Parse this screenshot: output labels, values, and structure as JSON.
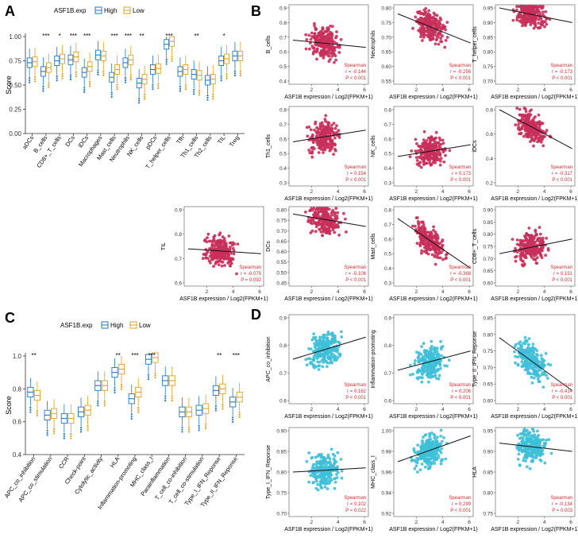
{
  "colors": {
    "high": "#1f77c4",
    "low": "#e0a020",
    "pointB": "#c8305a",
    "pointD": "#3fbfd8",
    "line": "#111111",
    "stat": "#d03030"
  },
  "chart_data": [
    {
      "panel": "A",
      "type": "box",
      "legend_title": "ASF1B.exp",
      "legend_items": [
        "High",
        "Low"
      ],
      "ylabel": "Score",
      "ylim": [
        0,
        1
      ],
      "yticks": [
        "0.00",
        "0.25",
        "0.50",
        "0.75",
        "1.00"
      ],
      "categories": [
        "aDCs",
        "B_cells",
        "CD8+_T_cells",
        "DCs",
        "iDCs",
        "Macrophages",
        "Mast_cells",
        "Neutrophils",
        "NK_cells",
        "pDCs",
        "T_helper_cells",
        "Tfh",
        "Th1_cells",
        "Th2_cells",
        "TIL",
        "Treg"
      ],
      "significance": [
        "",
        "***",
        "*",
        "***",
        "***",
        "",
        "***",
        "***",
        "**",
        "",
        "***",
        "",
        "**",
        "",
        "*",
        ""
      ],
      "medians_high": [
        0.73,
        0.64,
        0.75,
        0.76,
        0.63,
        0.81,
        0.58,
        0.73,
        0.52,
        0.66,
        0.92,
        0.64,
        0.61,
        0.55,
        0.75,
        0.8
      ],
      "medians_low": [
        0.74,
        0.68,
        0.77,
        0.79,
        0.69,
        0.8,
        0.66,
        0.76,
        0.56,
        0.67,
        0.95,
        0.66,
        0.6,
        0.56,
        0.77,
        0.8
      ]
    },
    {
      "panel": "B",
      "type": "scatter",
      "xlabel": "ASF1B expression / Log2(FPKM+1)",
      "legend": "Spearman",
      "plots": [
        {
          "ylabel": "B_cells",
          "r": "r = -0.144",
          "p": "P < 0.001",
          "yticks": [
            "0.4",
            "0.5",
            "0.6",
            "0.7",
            "0.8",
            "0.9"
          ],
          "xticks": [
            "2",
            "4",
            "6"
          ],
          "fit": [
            0.68,
            0.63
          ]
        },
        {
          "ylabel": "Neutrophils",
          "r": "r = -0.256",
          "p": "P < 0.001",
          "yticks": [
            "0.55",
            "0.60",
            "0.65",
            "0.70",
            "0.75",
            "0.80"
          ],
          "xticks": [
            "2",
            "4",
            "6"
          ],
          "fit": [
            0.78,
            0.68
          ]
        },
        {
          "ylabel": "T_helper_cells",
          "r": "r = -0.173",
          "p": "P < 0.001",
          "yticks": [
            "0.70",
            "0.75",
            "0.80",
            "0.85",
            "0.90",
            "0.95"
          ],
          "xticks": [
            "2",
            "4",
            "6"
          ],
          "fit": [
            0.95,
            0.9
          ]
        },
        {
          "ylabel": "Th1_cells",
          "r": "r = 0.154",
          "p": "P < 0.001",
          "yticks": [
            "0.3",
            "0.4",
            "0.5",
            "0.6",
            "0.7",
            "0.8"
          ],
          "xticks": [
            "2",
            "4",
            "6"
          ],
          "fit": [
            0.58,
            0.66
          ]
        },
        {
          "ylabel": "NK_cells",
          "r": "r = 0.173",
          "p": "P < 0.001",
          "yticks": [
            "0.3",
            "0.4",
            "0.5",
            "0.6",
            "0.7",
            "0.8"
          ],
          "xticks": [
            "2",
            "4",
            "6"
          ],
          "fit": [
            0.48,
            0.56
          ]
        },
        {
          "ylabel": "iDCs",
          "r": "r = -0.317",
          "p": "P < 0.001",
          "yticks": [
            "0.2",
            "0.4",
            "0.6",
            "0.8"
          ],
          "xticks": [
            "2",
            "4",
            "6"
          ],
          "fit": [
            0.8,
            0.48
          ]
        },
        {
          "ylabel": "TIL",
          "r": "r = -0.075",
          "p": "P = 0.092",
          "yticks": [
            "0.6",
            "0.7",
            "0.8",
            "0.9"
          ],
          "xticks": [
            "2",
            "4",
            "6"
          ],
          "fit": [
            0.74,
            0.72
          ]
        },
        {
          "ylabel": "DCs",
          "r": "r = -0.106",
          "p": "P < 0.001",
          "yticks": [
            "0.45",
            "0.50",
            "0.55",
            "0.60",
            "0.65",
            "0.70",
            "0.75",
            "0.80"
          ],
          "xticks": [
            "2",
            "4",
            "6"
          ],
          "fit": [
            0.78,
            0.72
          ]
        },
        {
          "ylabel": "Mast_cells",
          "r": "r = -0.368",
          "p": "P < 0.001",
          "yticks": [
            "0.3",
            "0.4",
            "0.5",
            "0.6",
            "0.7",
            "0.8"
          ],
          "xticks": [
            "2",
            "4",
            "6"
          ],
          "fit": [
            0.74,
            0.4
          ]
        },
        {
          "ylabel": "CD8+_T_cells",
          "r": "r = 0.151",
          "p": "P < 0.001",
          "yticks": [
            "0.60",
            "0.65",
            "0.70",
            "0.75",
            "0.80",
            "0.85",
            "0.90"
          ],
          "xticks": [
            "2",
            "4",
            "6"
          ],
          "fit": [
            0.72,
            0.78
          ]
        }
      ]
    },
    {
      "panel": "C",
      "type": "box",
      "legend_title": "ASF1B.exp",
      "legend_items": [
        "High",
        "Low"
      ],
      "ylabel": "Score",
      "ylim": [
        0.4,
        1.0
      ],
      "yticks": [
        "0.4",
        "0.6",
        "0.8",
        "1.0"
      ],
      "categories": [
        "APC_co_inhibition",
        "APC_co_stimulation",
        "CCR",
        "Check-point",
        "Cytolytic_activity",
        "HLA",
        "Inflammation-promoting",
        "MHC_class_I",
        "Parainflammation",
        "T_cell_co-inhibition",
        "T_cell_co-stimulation",
        "Type_I_IFN_Reponse",
        "Type_II_IFN_Reponse"
      ],
      "significance": [
        "**",
        "",
        "",
        "",
        "",
        "**",
        "***",
        "***",
        "",
        "",
        "",
        "**",
        "***"
      ],
      "medians_high": [
        0.78,
        0.64,
        0.62,
        0.66,
        0.82,
        0.9,
        0.74,
        0.98,
        0.85,
        0.66,
        0.67,
        0.79,
        0.72
      ],
      "medians_low": [
        0.76,
        0.65,
        0.62,
        0.67,
        0.82,
        0.92,
        0.78,
        0.99,
        0.85,
        0.66,
        0.68,
        0.8,
        0.75
      ]
    },
    {
      "panel": "D",
      "type": "scatter",
      "xlabel": "ASF1B expression / Log2(FPKM+1)",
      "legend": "Spearman",
      "plots": [
        {
          "ylabel": "APC_co_inhibition",
          "r": "r = 0.162",
          "p": "P < 0.001",
          "yticks": [
            "0.6",
            "0.7",
            "0.8",
            "0.9"
          ],
          "xticks": [
            "2",
            "4",
            "6"
          ],
          "fit": [
            0.75,
            0.83
          ]
        },
        {
          "ylabel": "Inflammation-promoting",
          "r": "r = 0.206",
          "p": "P < 0.001",
          "yticks": [
            "0.6",
            "0.7",
            "0.8",
            "0.9"
          ],
          "xticks": [
            "2",
            "4",
            "6"
          ],
          "fit": [
            0.71,
            0.78
          ]
        },
        {
          "ylabel": "Type_II_IFN_Reponse",
          "r": "r = -0.414",
          "p": "P < 0.001",
          "yticks": [
            "0.60",
            "0.65",
            "0.70",
            "0.75",
            "0.80",
            "0.85"
          ],
          "xticks": [
            "2",
            "4",
            "6"
          ],
          "fit": [
            0.79,
            0.63
          ]
        },
        {
          "ylabel": "Type_I_IFN_Reponse",
          "r": "r = 0.102",
          "p": "P = 0.022",
          "yticks": [
            "0.70",
            "0.75",
            "0.80",
            "0.85",
            "0.90"
          ],
          "xticks": [
            "2",
            "4",
            "6"
          ],
          "fit": [
            0.8,
            0.81
          ]
        },
        {
          "ylabel": "MHC_class_I",
          "r": "r = 0.299",
          "p": "P < 0.001",
          "yticks": [
            "0.92",
            "0.94",
            "0.96",
            "0.98",
            "1.00"
          ],
          "xticks": [
            "2",
            "4",
            "6"
          ],
          "fit": [
            0.97,
            0.995
          ]
        },
        {
          "ylabel": "HLA",
          "r": "r = -0.134",
          "p": "P = 0.003",
          "yticks": [
            "0.75",
            "0.80",
            "0.85",
            "0.90",
            "0.95"
          ],
          "xticks": [
            "2",
            "4",
            "6"
          ],
          "fit": [
            0.92,
            0.9
          ]
        }
      ]
    }
  ],
  "panel_labels": [
    "A",
    "B",
    "C",
    "D"
  ]
}
